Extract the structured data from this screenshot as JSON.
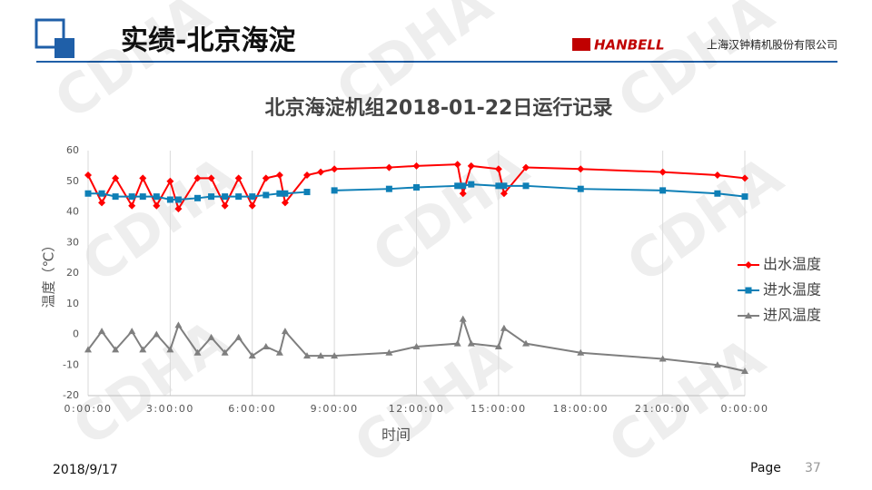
{
  "slide": {
    "title": "实绩-北京海淀",
    "logo": "HANBELL",
    "company": "上海汉钟精机股份有限公司",
    "date": "2018/9/17",
    "page_label": "Page",
    "page_number": "37",
    "watermark": "CDHA"
  },
  "chart_data": {
    "type": "line",
    "title": "北京海淀机组2018-01-22日运行记录",
    "x_label": "时间",
    "y_label": "温度（℃）",
    "x": [
      0,
      0.5,
      1,
      1.6,
      2,
      2.5,
      3,
      3.3,
      4,
      4.5,
      5,
      5.5,
      6,
      6.5,
      7,
      7.2,
      8,
      8.5,
      9,
      11,
      12,
      13.5,
      13.7,
      14,
      15,
      15.2,
      16,
      18,
      21,
      23,
      24
    ],
    "series": [
      {
        "name": "出水温度",
        "color": "#ff0000",
        "marker": "diamond",
        "values": [
          52,
          43,
          51,
          42,
          51,
          42,
          50,
          41,
          51,
          51,
          42,
          51,
          42,
          51,
          52,
          43,
          52,
          53,
          54,
          54.5,
          55,
          55.5,
          46,
          55,
          54,
          46,
          54.5,
          54,
          53,
          52,
          51
        ]
      },
      {
        "name": "进水温度",
        "color": "#0e7fb6",
        "marker": "square",
        "values": [
          46,
          46,
          45,
          45,
          45,
          45,
          44,
          44,
          44.5,
          45,
          45,
          45,
          45,
          45.5,
          46,
          46,
          46.5,
          null,
          47,
          47.5,
          48,
          48.5,
          48.5,
          49,
          48.5,
          48.5,
          48.5,
          47.5,
          47,
          46,
          45
        ]
      },
      {
        "name": "进风温度",
        "color": "#7f7f7f",
        "marker": "triangle",
        "values": [
          -5,
          1,
          -5,
          1,
          -5,
          0,
          -5,
          3,
          -6,
          -1,
          -6,
          -1,
          -7,
          -4,
          -6,
          1,
          -7,
          -7,
          -7,
          -6,
          -4,
          -3,
          5,
          -3,
          -4,
          2,
          -3,
          -6,
          -8,
          -10,
          -12
        ]
      }
    ],
    "xlim": [
      0,
      24
    ],
    "xticks": [
      {
        "value": 0,
        "label": "0:00:00"
      },
      {
        "value": 3,
        "label": "3:00:00"
      },
      {
        "value": 6,
        "label": "6:00:00"
      },
      {
        "value": 9,
        "label": "9:00:00"
      },
      {
        "value": 12,
        "label": "12:00:00"
      },
      {
        "value": 15,
        "label": "15:00:00"
      },
      {
        "value": 18,
        "label": "18:00:00"
      },
      {
        "value": 21,
        "label": "21:00:00"
      },
      {
        "value": 24,
        "label": "0:00:00"
      }
    ],
    "ylim": [
      -20,
      60
    ],
    "yticks": [
      -20,
      -10,
      0,
      10,
      20,
      30,
      40,
      50,
      60
    ],
    "grid": "x",
    "legend": "right"
  }
}
